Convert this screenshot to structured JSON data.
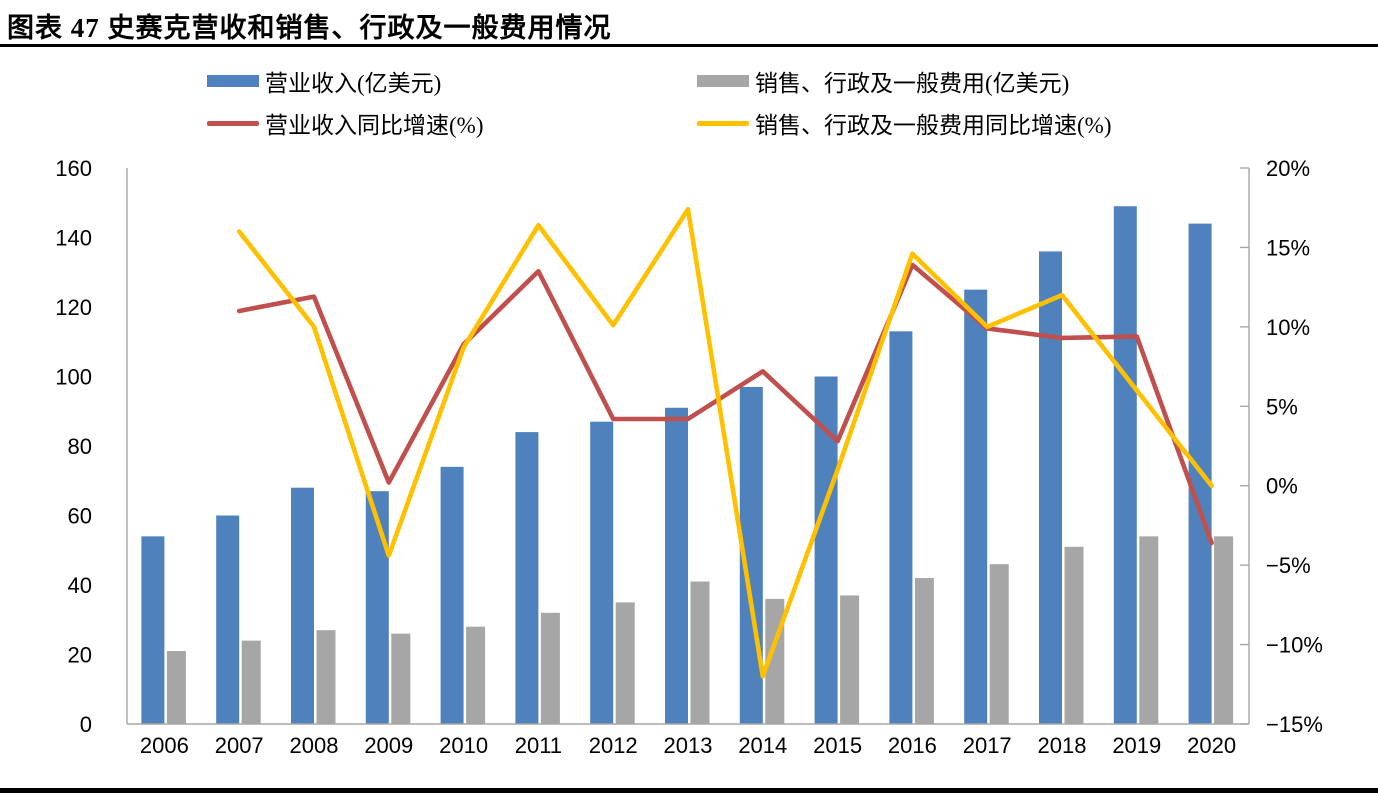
{
  "page": {
    "title": "图表 47 史赛克营收和销售、行政及一般费用情况"
  },
  "chart_data": {
    "type": "combo-bar-line",
    "title": "图表 47 史赛克营收和销售、行政及一般费用情况",
    "categories": [
      "2006",
      "2007",
      "2008",
      "2009",
      "2010",
      "2011",
      "2012",
      "2013",
      "2014",
      "2015",
      "2016",
      "2017",
      "2018",
      "2019",
      "2020"
    ],
    "series": [
      {
        "name": "营业收入(亿美元)",
        "type": "bar",
        "axis": "left",
        "color": "#4F81BD",
        "values": [
          54,
          60,
          68,
          67,
          74,
          84,
          87,
          91,
          97,
          100,
          113,
          125,
          136,
          149,
          144
        ]
      },
      {
        "name": "销售、行政及一般费用(亿美元)",
        "type": "bar",
        "axis": "left",
        "color": "#A6A6A6",
        "values": [
          21,
          24,
          27,
          26,
          28,
          32,
          35,
          41,
          36,
          37,
          42,
          46,
          51,
          54,
          54
        ]
      },
      {
        "name": "营业收入同比增速(%)",
        "type": "line",
        "axis": "right",
        "color": "#C0504D",
        "values": [
          null,
          11.0,
          11.9,
          0.2,
          8.9,
          13.5,
          4.2,
          4.2,
          7.2,
          2.8,
          13.9,
          9.9,
          9.3,
          9.4,
          -3.6
        ]
      },
      {
        "name": "销售、行政及一般费用同比增速(%)",
        "type": "line",
        "axis": "right",
        "color": "#FFC000",
        "values": [
          null,
          16.0,
          10.0,
          -4.4,
          8.7,
          16.4,
          10.1,
          17.4,
          -12.0,
          1.0,
          14.6,
          10.0,
          12.0,
          6.0,
          0.0
        ]
      }
    ],
    "left_axis": {
      "min": 0,
      "max": 160,
      "step": 20,
      "tick_labels": [
        "160",
        "140",
        "120",
        "100",
        "80",
        "60",
        "40",
        "20",
        "0"
      ]
    },
    "right_axis": {
      "min": -15,
      "max": 20,
      "step": 5,
      "tick_labels": [
        "20%",
        "15%",
        "10%",
        "5%",
        "0%",
        "−5%",
        "−10%",
        "−15%"
      ]
    },
    "grid": false,
    "legend_position": "top",
    "axis_line_color": "#A6A6A6"
  }
}
